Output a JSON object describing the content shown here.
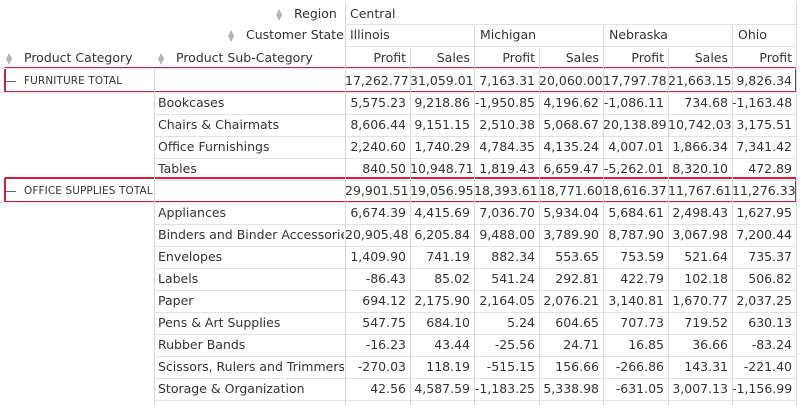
{
  "headers": {
    "region_label": "Region",
    "state_label": "Customer State",
    "category_label": "Product Category",
    "subcategory_label": "Product Sub-Category",
    "region_value": "Central",
    "states": [
      "Illinois",
      "Michigan",
      "Nebraska",
      "Ohio"
    ],
    "measures": [
      "Profit",
      "Sales",
      "Profit",
      "Sales",
      "Profit",
      "Sales",
      "Profit"
    ]
  },
  "groups": [
    {
      "total_label": "FURNITURE TOTAL",
      "total_values": [
        "17,262.77",
        "31,059.01",
        "7,163.31",
        "20,060.00",
        "17,797.78",
        "21,663.15",
        "9,826.34"
      ],
      "rows": [
        {
          "label": "Bookcases",
          "values": [
            "5,575.23",
            "9,218.86",
            "-1,950.85",
            "4,196.62",
            "-1,086.11",
            "734.68",
            "-1,163.48"
          ]
        },
        {
          "label": "Chairs & Chairmats",
          "values": [
            "8,606.44",
            "9,151.15",
            "2,510.38",
            "5,068.67",
            "20,138.89",
            "10,742.03",
            "3,175.51"
          ]
        },
        {
          "label": "Office Furnishings",
          "values": [
            "2,240.60",
            "1,740.29",
            "4,784.35",
            "4,135.24",
            "4,007.01",
            "1,866.34",
            "7,341.42"
          ]
        },
        {
          "label": "Tables",
          "values": [
            "840.50",
            "10,948.71",
            "1,819.43",
            "6,659.47",
            "-5,262.01",
            "8,320.10",
            "472.89"
          ]
        }
      ]
    },
    {
      "total_label": "OFFICE SUPPLIES TOTAL",
      "total_values": [
        "29,901.51",
        "19,056.95",
        "18,393.61",
        "18,771.60",
        "18,616.37",
        "11,767.61",
        "11,276.33"
      ],
      "rows": [
        {
          "label": "Appliances",
          "values": [
            "6,674.39",
            "4,415.69",
            "7,036.70",
            "5,934.04",
            "5,684.61",
            "2,498.43",
            "1,627.95"
          ]
        },
        {
          "label": "Binders and Binder Accessories",
          "values": [
            "20,905.48",
            "6,205.84",
            "9,488.00",
            "3,789.90",
            "8,787.90",
            "3,067.98",
            "7,200.44"
          ]
        },
        {
          "label": "Envelopes",
          "values": [
            "1,409.90",
            "741.19",
            "882.34",
            "553.65",
            "753.59",
            "521.64",
            "735.37"
          ]
        },
        {
          "label": "Labels",
          "values": [
            "-86.43",
            "85.02",
            "541.24",
            "292.81",
            "422.79",
            "102.18",
            "506.82"
          ]
        },
        {
          "label": "Paper",
          "values": [
            "694.12",
            "2,175.90",
            "2,164.05",
            "2,076.21",
            "3,140.81",
            "1,670.77",
            "2,037.25"
          ]
        },
        {
          "label": "Pens & Art Supplies",
          "values": [
            "547.75",
            "684.10",
            "5.24",
            "604.65",
            "707.73",
            "719.52",
            "630.13"
          ]
        },
        {
          "label": "Rubber Bands",
          "values": [
            "-16.23",
            "43.44",
            "-25.56",
            "24.71",
            "16.85",
            "36.66",
            "-83.24"
          ]
        },
        {
          "label": "Scissors, Rulers and Trimmers",
          "values": [
            "-270.03",
            "118.19",
            "-515.15",
            "156.66",
            "-266.86",
            "143.31",
            "-221.40"
          ]
        },
        {
          "label": "Storage & Organization",
          "values": [
            "42.56",
            "4,587.59",
            "-1,183.25",
            "5,338.98",
            "-631.05",
            "3,007.13",
            "-1,156.99"
          ]
        }
      ]
    }
  ],
  "colors": {
    "highlight_border": "#d21f3c",
    "grid_line": "#d8d8d8",
    "text": "#333333",
    "sort_icon": "#b5b5b5"
  }
}
